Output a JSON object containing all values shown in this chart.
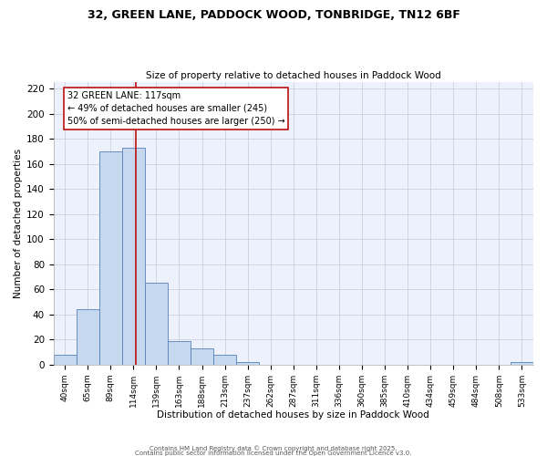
{
  "title": "32, GREEN LANE, PADDOCK WOOD, TONBRIDGE, TN12 6BF",
  "subtitle": "Size of property relative to detached houses in Paddock Wood",
  "xlabel": "Distribution of detached houses by size in Paddock Wood",
  "ylabel": "Number of detached properties",
  "bar_color": "#c5d8ee",
  "bar_edge_color": "#5580bb",
  "background_color": "#edf1fb",
  "grid_color": "#c8c8d8",
  "categories": [
    "40sqm",
    "65sqm",
    "89sqm",
    "114sqm",
    "139sqm",
    "163sqm",
    "188sqm",
    "213sqm",
    "237sqm",
    "262sqm",
    "287sqm",
    "311sqm",
    "336sqm",
    "360sqm",
    "385sqm",
    "410sqm",
    "434sqm",
    "459sqm",
    "484sqm",
    "508sqm",
    "533sqm"
  ],
  "values": [
    8,
    44,
    170,
    173,
    65,
    19,
    13,
    8,
    2,
    0,
    0,
    0,
    0,
    0,
    0,
    0,
    0,
    0,
    0,
    0,
    2
  ],
  "ylim": [
    0,
    225
  ],
  "yticks": [
    0,
    20,
    40,
    60,
    80,
    100,
    120,
    140,
    160,
    180,
    200,
    220
  ],
  "red_line_color": "#bb1111",
  "annotation_title": "32 GREEN LANE: 117sqm",
  "annotation_line1": "← 49% of detached houses are smaller (245)",
  "annotation_line2": "50% of semi-detached houses are larger (250) →",
  "footer_line1": "Contains HM Land Registry data © Crown copyright and database right 2025.",
  "footer_line2": "Contains public sector information licensed under the Open Government Licence v3.0."
}
